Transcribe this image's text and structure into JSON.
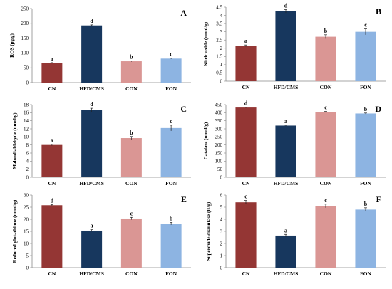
{
  "colors": {
    "CN": "#943634",
    "HFD/CMS": "#17375e",
    "CON": "#da9694",
    "FON": "#8db4e2",
    "axis": "#8a8a8a",
    "errorbar": "#222222"
  },
  "chart_data": [
    {
      "type": "bar",
      "panel": "A",
      "ylabel": "ROS (pg/g)",
      "categories": [
        "CN",
        "HFD/CMS",
        "CON",
        "FON"
      ],
      "values": [
        66,
        193,
        72,
        81
      ],
      "errors": [
        1.5,
        2,
        1.5,
        1.5
      ],
      "sig_labels": [
        "a",
        "d",
        "b",
        "c"
      ],
      "ylim": [
        0,
        250
      ],
      "yticks": [
        "0",
        "50",
        "100",
        "150",
        "200",
        "250"
      ]
    },
    {
      "type": "bar",
      "panel": "B",
      "ylabel": "Nitric oxide (nmol/g)",
      "categories": [
        "CN",
        "HFD/CMS",
        "CON",
        "FON"
      ],
      "values": [
        2.15,
        4.25,
        2.7,
        3.0
      ],
      "errors": [
        0.05,
        0.1,
        0.12,
        0.18
      ],
      "sig_labels": [
        "a",
        "d",
        "b",
        "c"
      ],
      "ylim": [
        0,
        4.5
      ],
      "yticks": [
        "0",
        "0.5",
        "1",
        "1.5",
        "2",
        "2.5",
        "3",
        "3.5",
        "4",
        "4.5"
      ]
    },
    {
      "type": "bar",
      "panel": "C",
      "ylabel": "Malondialdehyde (nmol/g)",
      "categories": [
        "CN",
        "HFD/CMS",
        "CON",
        "FON"
      ],
      "values": [
        8.0,
        16.6,
        9.7,
        12.2
      ],
      "errors": [
        0.2,
        0.5,
        0.4,
        0.7
      ],
      "sig_labels": [
        "a",
        "d",
        "b",
        "c"
      ],
      "ylim": [
        0,
        18
      ],
      "yticks": [
        "0",
        "2",
        "4",
        "6",
        "8",
        "10",
        "12",
        "14",
        "16",
        "18"
      ]
    },
    {
      "type": "bar",
      "panel": "D",
      "ylabel": "Catalase (nmol/g)",
      "categories": [
        "CN",
        "HFD/CMS",
        "CON",
        "FON"
      ],
      "values": [
        432,
        320,
        405,
        395
      ],
      "errors": [
        3,
        3,
        3,
        3
      ],
      "sig_labels": [
        "d",
        "a",
        "c",
        "b"
      ],
      "ylim": [
        0,
        450
      ],
      "yticks": [
        "0",
        "50",
        "100",
        "150",
        "200",
        "250",
        "300",
        "350",
        "400",
        "450"
      ]
    },
    {
      "type": "bar",
      "panel": "E",
      "ylabel": "Reduced glutathione (nmol/g)",
      "categories": [
        "CN",
        "HFD/CMS",
        "CON",
        "FON"
      ],
      "values": [
        25.8,
        15.3,
        20.3,
        18.2
      ],
      "errors": [
        0.3,
        0.4,
        0.5,
        0.5
      ],
      "sig_labels": [
        "d",
        "a",
        "c",
        "b"
      ],
      "ylim": [
        0,
        30
      ],
      "yticks": [
        "0",
        "5",
        "10",
        "15",
        "20",
        "25",
        "30"
      ]
    },
    {
      "type": "bar",
      "panel": "F",
      "ylabel": "Superoxide dismutase (U/g)",
      "categories": [
        "CN",
        "HFD/CMS",
        "CON",
        "FON"
      ],
      "values": [
        5.4,
        2.65,
        5.1,
        4.8
      ],
      "errors": [
        0.15,
        0.1,
        0.15,
        0.15
      ],
      "sig_labels": [
        "c",
        "a",
        "c",
        "b"
      ],
      "ylim": [
        0,
        6
      ],
      "yticks": [
        "0",
        "1",
        "2",
        "3",
        "4",
        "5",
        "6"
      ]
    }
  ]
}
